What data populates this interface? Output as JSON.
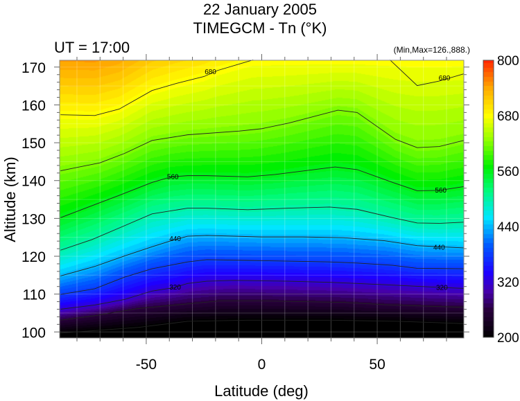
{
  "chart_data": {
    "type": "heatmap",
    "title": "22 January 2005",
    "subtitle": "TIMEGCM - Tn (°K)",
    "annotation_left": "UT = 17:00",
    "annotation_right": "(Min,Max=126.,888.)",
    "xlabel": "Latitude (deg)",
    "ylabel": "Altitude (km)",
    "xlim": [
      -87.5,
      87.5
    ],
    "ylim": [
      98.4,
      171.8
    ],
    "xticks": [
      -50,
      0,
      50
    ],
    "xtick_labels": [
      "-50",
      "0",
      "50"
    ],
    "yticks": [
      100,
      110,
      120,
      130,
      140,
      150,
      160,
      170
    ],
    "ytick_labels": [
      "100",
      "110",
      "120",
      "130",
      "140",
      "150",
      "160",
      "170"
    ],
    "colorbar": {
      "min": 200,
      "max": 800,
      "ticks": [
        200,
        320,
        440,
        560,
        680,
        800
      ],
      "tick_labels": [
        "200",
        "320",
        "440",
        "560",
        "680",
        "800"
      ]
    },
    "contour_interval": 60,
    "contours": [
      {
        "level": 680,
        "points": [
          [
            -87.1,
            157.4
          ],
          [
            -72.3,
            157.2
          ],
          [
            -61.7,
            158.9
          ],
          [
            -47.5,
            163.8
          ],
          [
            -36.8,
            165.7
          ],
          [
            -25,
            167.5
          ],
          [
            -19.1,
            169.1
          ],
          [
            -3.7,
            171.9
          ]
        ]
      },
      {
        "level": 680,
        "closed_region": true,
        "points": [
          [
            55.5,
            171.9
          ],
          [
            67.3,
            165.1
          ],
          [
            76.8,
            166.3
          ],
          [
            87.4,
            168.2
          ]
        ]
      },
      {
        "level": 620,
        "points": [
          [
            -87.1,
            142.6
          ],
          [
            -70,
            144.7
          ],
          [
            -59.3,
            147.2
          ],
          [
            -47.5,
            150.6
          ],
          [
            -32.1,
            152.1
          ],
          [
            -9.6,
            153.1
          ],
          [
            -0.1,
            153.7
          ],
          [
            11.7,
            155.2
          ],
          [
            33,
            158.6
          ],
          [
            41.3,
            158
          ],
          [
            57.9,
            150.9
          ],
          [
            67.3,
            148.7
          ],
          [
            76.8,
            149.0
          ],
          [
            87.4,
            150.6
          ]
        ]
      },
      {
        "level": 560,
        "points": [
          [
            -87.1,
            130.2
          ],
          [
            -61.7,
            136.1
          ],
          [
            -47.5,
            139.5
          ],
          [
            -39.2,
            141.0
          ],
          [
            -32.1,
            141.3
          ],
          [
            -23.8,
            141.3
          ],
          [
            -6.1,
            141.0
          ],
          [
            5.8,
            141.6
          ],
          [
            31.8,
            143.6
          ],
          [
            41.3,
            142.9
          ],
          [
            56.7,
            139.5
          ],
          [
            67.3,
            137.3
          ],
          [
            76.8,
            137.4
          ],
          [
            87.4,
            138.4
          ]
        ]
      },
      {
        "level": 500,
        "points": [
          [
            -87.1,
            121.6
          ],
          [
            -73.5,
            124.4
          ],
          [
            -59.3,
            128.1
          ],
          [
            -47.5,
            131.2
          ],
          [
            -32.1,
            132.7
          ],
          [
            -23.8,
            132.7
          ],
          [
            -6.1,
            132.3
          ],
          [
            11.7,
            132.7
          ],
          [
            29.4,
            133.0
          ],
          [
            41.3,
            132.4
          ],
          [
            56.7,
            130.2
          ],
          [
            67.3,
            128.8
          ],
          [
            76.8,
            128.7
          ],
          [
            87.4,
            129.0
          ]
        ]
      },
      {
        "level": 440,
        "points": [
          [
            -87.1,
            114.8
          ],
          [
            -72.3,
            117.3
          ],
          [
            -59.3,
            120.1
          ],
          [
            -47.5,
            122.5
          ],
          [
            -39.2,
            124.1
          ],
          [
            -32.1,
            125.3
          ],
          [
            -23.8,
            125.5
          ],
          [
            -0.1,
            125.1
          ],
          [
            17.6,
            125.1
          ],
          [
            35.4,
            124.9
          ],
          [
            53.1,
            124.1
          ],
          [
            67.3,
            122.8
          ],
          [
            87.4,
            122.2
          ]
        ]
      },
      {
        "level": 380,
        "points": [
          [
            -87.1,
            109.9
          ],
          [
            -72.3,
            111.4
          ],
          [
            -59.3,
            114.5
          ],
          [
            -47.5,
            116.7
          ],
          [
            -32.1,
            118.5
          ],
          [
            -23.8,
            119.1
          ],
          [
            -6.1,
            118.9
          ],
          [
            11.7,
            118.7
          ],
          [
            29.4,
            118.5
          ],
          [
            41.3,
            118.2
          ],
          [
            56.7,
            117.6
          ],
          [
            67.3,
            116.8
          ],
          [
            87.4,
            116.7
          ]
        ]
      },
      {
        "level": 320,
        "points": [
          [
            -87.1,
            106.0
          ],
          [
            -72.3,
            107.1
          ],
          [
            -59.3,
            108.6
          ],
          [
            -47.5,
            110.8
          ],
          [
            -38,
            111.7
          ],
          [
            -32.1,
            112.8
          ],
          [
            -23.8,
            113.4
          ],
          [
            -12,
            113.6
          ],
          [
            11.7,
            113.4
          ],
          [
            29.4,
            113.1
          ],
          [
            41.3,
            112.8
          ],
          [
            59,
            112.3
          ],
          [
            79.1,
            111.7
          ],
          [
            87.4,
            111.5
          ]
        ]
      },
      {
        "level": 260,
        "points": [
          [
            -87.1,
            103.1
          ],
          [
            -72.3,
            104.3
          ],
          [
            -53.4,
            106.2
          ],
          [
            -32.1,
            107.4
          ],
          [
            -17.9,
            108.2
          ],
          [
            -0.1,
            108.2
          ],
          [
            17.6,
            108.0
          ],
          [
            35.4,
            107.8
          ],
          [
            53.1,
            107.2
          ],
          [
            70.9,
            106.8
          ],
          [
            87.4,
            106.5
          ]
        ]
      },
      {
        "level": 200,
        "points": [
          [
            -87.1,
            99.7
          ],
          [
            -53.4,
            101.2
          ],
          [
            -32.1,
            102.8
          ],
          [
            -6.1,
            103.1
          ],
          [
            29.4,
            103.1
          ],
          [
            59,
            102.8
          ],
          [
            87.4,
            102.2
          ]
        ]
      }
    ],
    "contour_labels": [
      {
        "text": "680",
        "lat": -22.2,
        "alt": 168.7
      },
      {
        "text": "680",
        "lat": 79.1,
        "alt": 167.0
      },
      {
        "text": "560",
        "lat": -38.5,
        "alt": 141.0
      },
      {
        "text": "560",
        "lat": 77.5,
        "alt": 137.4
      },
      {
        "text": "440",
        "lat": -37.5,
        "alt": 124.6
      },
      {
        "text": "440",
        "lat": 76.8,
        "alt": 122.3
      },
      {
        "text": "320",
        "lat": -37.5,
        "alt": 111.8
      },
      {
        "text": "320",
        "lat": 78.0,
        "alt": 111.7
      }
    ]
  }
}
